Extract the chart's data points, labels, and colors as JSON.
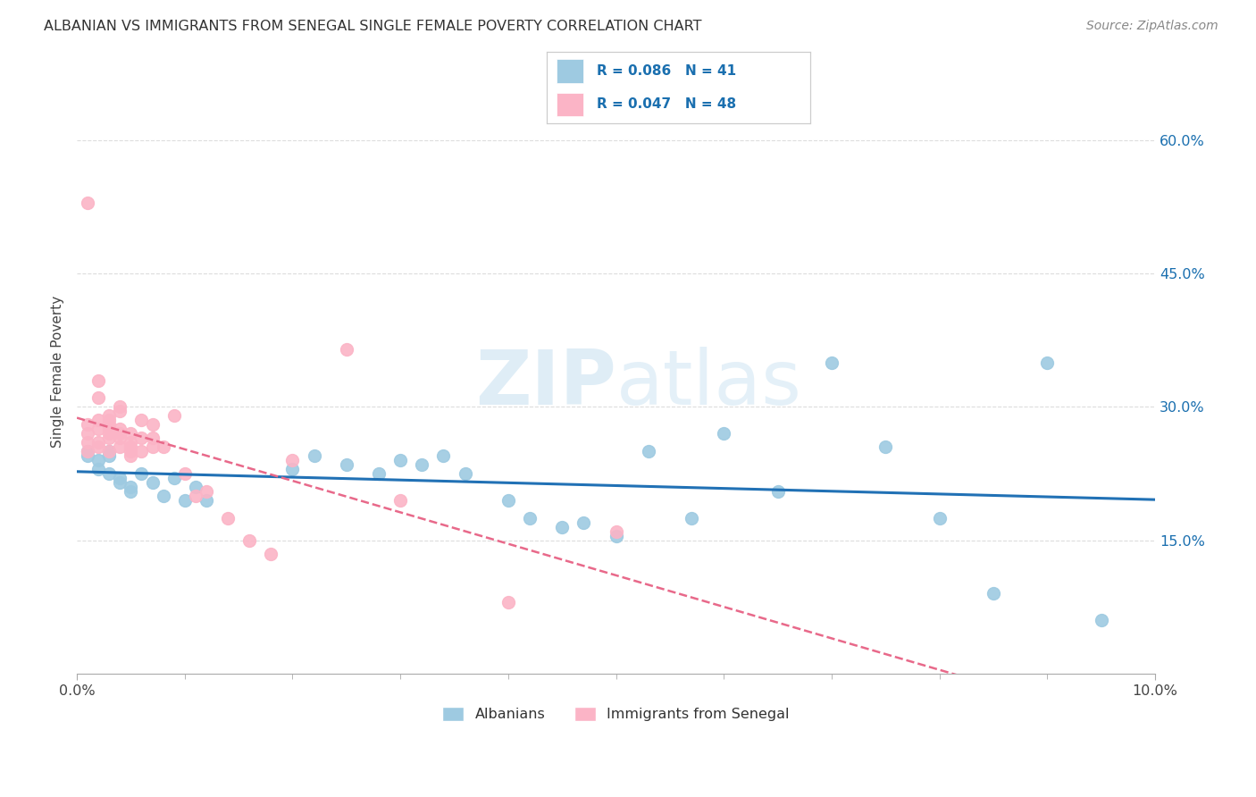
{
  "title": "ALBANIAN VS IMMIGRANTS FROM SENEGAL SINGLE FEMALE POVERTY CORRELATION CHART",
  "source": "Source: ZipAtlas.com",
  "ylabel": "Single Female Poverty",
  "x_min": 0.0,
  "x_max": 0.1,
  "y_min": 0.0,
  "y_max": 0.68,
  "y_ticks": [
    0.15,
    0.3,
    0.45,
    0.6
  ],
  "y_tick_labels": [
    "15.0%",
    "30.0%",
    "45.0%",
    "60.0%"
  ],
  "albanians_R": 0.086,
  "albanians_N": 41,
  "senegal_R": 0.047,
  "senegal_N": 48,
  "blue_scatter_color": "#9ecae1",
  "pink_scatter_color": "#fbb4c6",
  "blue_line_color": "#2171b5",
  "pink_line_color": "#e8698a",
  "legend_text_color": "#1a6faf",
  "background_color": "#ffffff",
  "grid_color": "#dddddd",
  "watermark": "ZIPatlas",
  "albanians_x": [
    0.001,
    0.001,
    0.002,
    0.002,
    0.003,
    0.003,
    0.003,
    0.004,
    0.004,
    0.005,
    0.005,
    0.006,
    0.007,
    0.008,
    0.009,
    0.01,
    0.011,
    0.012,
    0.02,
    0.022,
    0.025,
    0.028,
    0.03,
    0.032,
    0.034,
    0.036,
    0.04,
    0.042,
    0.045,
    0.047,
    0.05,
    0.053,
    0.057,
    0.06,
    0.065,
    0.07,
    0.075,
    0.08,
    0.085,
    0.09,
    0.095
  ],
  "albanians_y": [
    0.245,
    0.25,
    0.24,
    0.23,
    0.25,
    0.245,
    0.225,
    0.215,
    0.22,
    0.205,
    0.21,
    0.225,
    0.215,
    0.2,
    0.22,
    0.195,
    0.21,
    0.195,
    0.23,
    0.245,
    0.235,
    0.225,
    0.24,
    0.235,
    0.245,
    0.225,
    0.195,
    0.175,
    0.165,
    0.17,
    0.155,
    0.25,
    0.175,
    0.27,
    0.205,
    0.35,
    0.255,
    0.175,
    0.09,
    0.35,
    0.06
  ],
  "senegal_x": [
    0.001,
    0.001,
    0.001,
    0.001,
    0.001,
    0.002,
    0.002,
    0.002,
    0.002,
    0.002,
    0.002,
    0.003,
    0.003,
    0.003,
    0.003,
    0.003,
    0.003,
    0.003,
    0.004,
    0.004,
    0.004,
    0.004,
    0.004,
    0.004,
    0.005,
    0.005,
    0.005,
    0.005,
    0.005,
    0.006,
    0.006,
    0.006,
    0.007,
    0.007,
    0.007,
    0.008,
    0.009,
    0.01,
    0.011,
    0.012,
    0.014,
    0.016,
    0.018,
    0.02,
    0.025,
    0.03,
    0.04,
    0.05
  ],
  "senegal_y": [
    0.25,
    0.26,
    0.27,
    0.28,
    0.53,
    0.255,
    0.26,
    0.275,
    0.285,
    0.31,
    0.33,
    0.25,
    0.265,
    0.27,
    0.275,
    0.28,
    0.285,
    0.29,
    0.255,
    0.265,
    0.27,
    0.275,
    0.295,
    0.3,
    0.245,
    0.25,
    0.255,
    0.26,
    0.27,
    0.25,
    0.265,
    0.285,
    0.255,
    0.265,
    0.28,
    0.255,
    0.29,
    0.225,
    0.2,
    0.205,
    0.175,
    0.15,
    0.135,
    0.24,
    0.365,
    0.195,
    0.08,
    0.16
  ]
}
